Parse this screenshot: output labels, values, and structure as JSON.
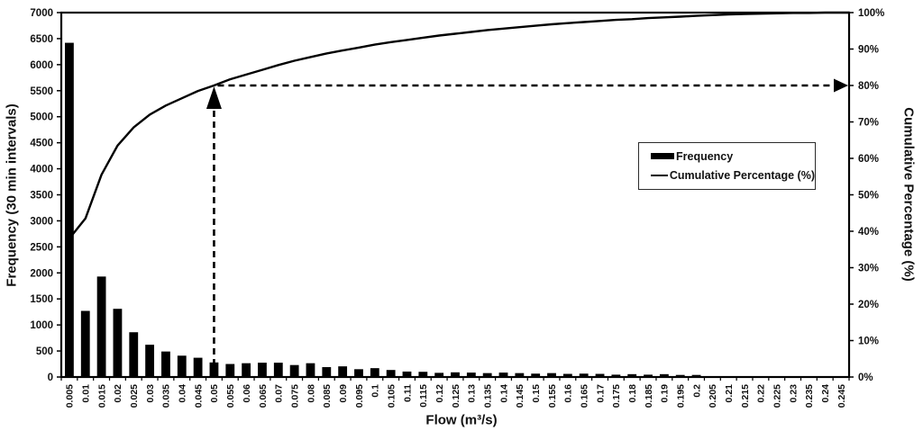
{
  "chart_data": {
    "type": "bar",
    "subtype": "pareto",
    "title": "",
    "xlabel": "Flow (m³/s)",
    "ylabel_left": "Frequency (30 min intervals)",
    "ylabel_right": "Cumulative Percentage (%)",
    "y_left_axis": {
      "min": 0,
      "max": 7000,
      "step": 500,
      "tick_labels": [
        "0",
        "500",
        "1000",
        "1500",
        "2000",
        "2500",
        "3000",
        "3500",
        "4000",
        "4500",
        "5000",
        "5500",
        "6000",
        "6500",
        "7000"
      ]
    },
    "y_right_axis": {
      "min": 0,
      "max": 100,
      "step": 10,
      "tick_labels": [
        "0%",
        "10%",
        "20%",
        "30%",
        "40%",
        "50%",
        "60%",
        "70%",
        "80%",
        "90%",
        "100%"
      ]
    },
    "grid": "off",
    "legend_position": "middle-right",
    "categories": [
      "0.005",
      "0.01",
      "0.015",
      "0.02",
      "0.025",
      "0.03",
      "0.035",
      "0.04",
      "0.045",
      "0.05",
      "0.055",
      "0.06",
      "0.065",
      "0.07",
      "0.075",
      "0.08",
      "0.085",
      "0.09",
      "0.095",
      "0.1",
      "0.105",
      "0.11",
      "0.115",
      "0.12",
      "0.125",
      "0.13",
      "0.135",
      "0.14",
      "0.145",
      "0.15",
      "0.155",
      "0.16",
      "0.165",
      "0.17",
      "0.175",
      "0.18",
      "0.185",
      "0.19",
      "0.195",
      "0.2",
      "0.205",
      "0.21",
      "0.215",
      "0.22",
      "0.225",
      "0.23",
      "0.235",
      "0.24",
      "0.245"
    ],
    "series": [
      {
        "name": "Frequency",
        "type": "bar",
        "color": "#000000",
        "axis": "left",
        "values": [
          6420,
          1270,
          1930,
          1310,
          860,
          620,
          490,
          410,
          370,
          280,
          250,
          265,
          275,
          275,
          230,
          265,
          190,
          205,
          150,
          170,
          135,
          105,
          100,
          80,
          90,
          85,
          75,
          85,
          75,
          65,
          75,
          60,
          65,
          60,
          45,
          55,
          45,
          55,
          40,
          40,
          15,
          10,
          5,
          5,
          5,
          5,
          5,
          3,
          3
        ]
      },
      {
        "name": "Cumulative Percentage (%)",
        "type": "line",
        "color": "#000000",
        "axis": "right",
        "values": [
          38,
          43.5,
          55.5,
          63.5,
          68.5,
          72,
          74.5,
          76.5,
          78.5,
          80,
          81.7,
          83,
          84.3,
          85.6,
          86.8,
          87.8,
          88.8,
          89.6,
          90.4,
          91.2,
          91.9,
          92.5,
          93.1,
          93.7,
          94.2,
          94.7,
          95.2,
          95.6,
          96,
          96.4,
          96.8,
          97.1,
          97.4,
          97.7,
          98,
          98.2,
          98.5,
          98.7,
          98.9,
          99.1,
          99.3,
          99.5,
          99.6,
          99.7,
          99.8,
          99.9,
          99.9,
          100,
          100
        ]
      }
    ],
    "annotation": {
      "type": "dashed-arrows",
      "at_category": "0.05",
      "at_percent": 80,
      "description": "Dashed arrow rises from flow 0.05 to the cumulative curve, then runs right to the 80% mark on the right axis"
    }
  }
}
